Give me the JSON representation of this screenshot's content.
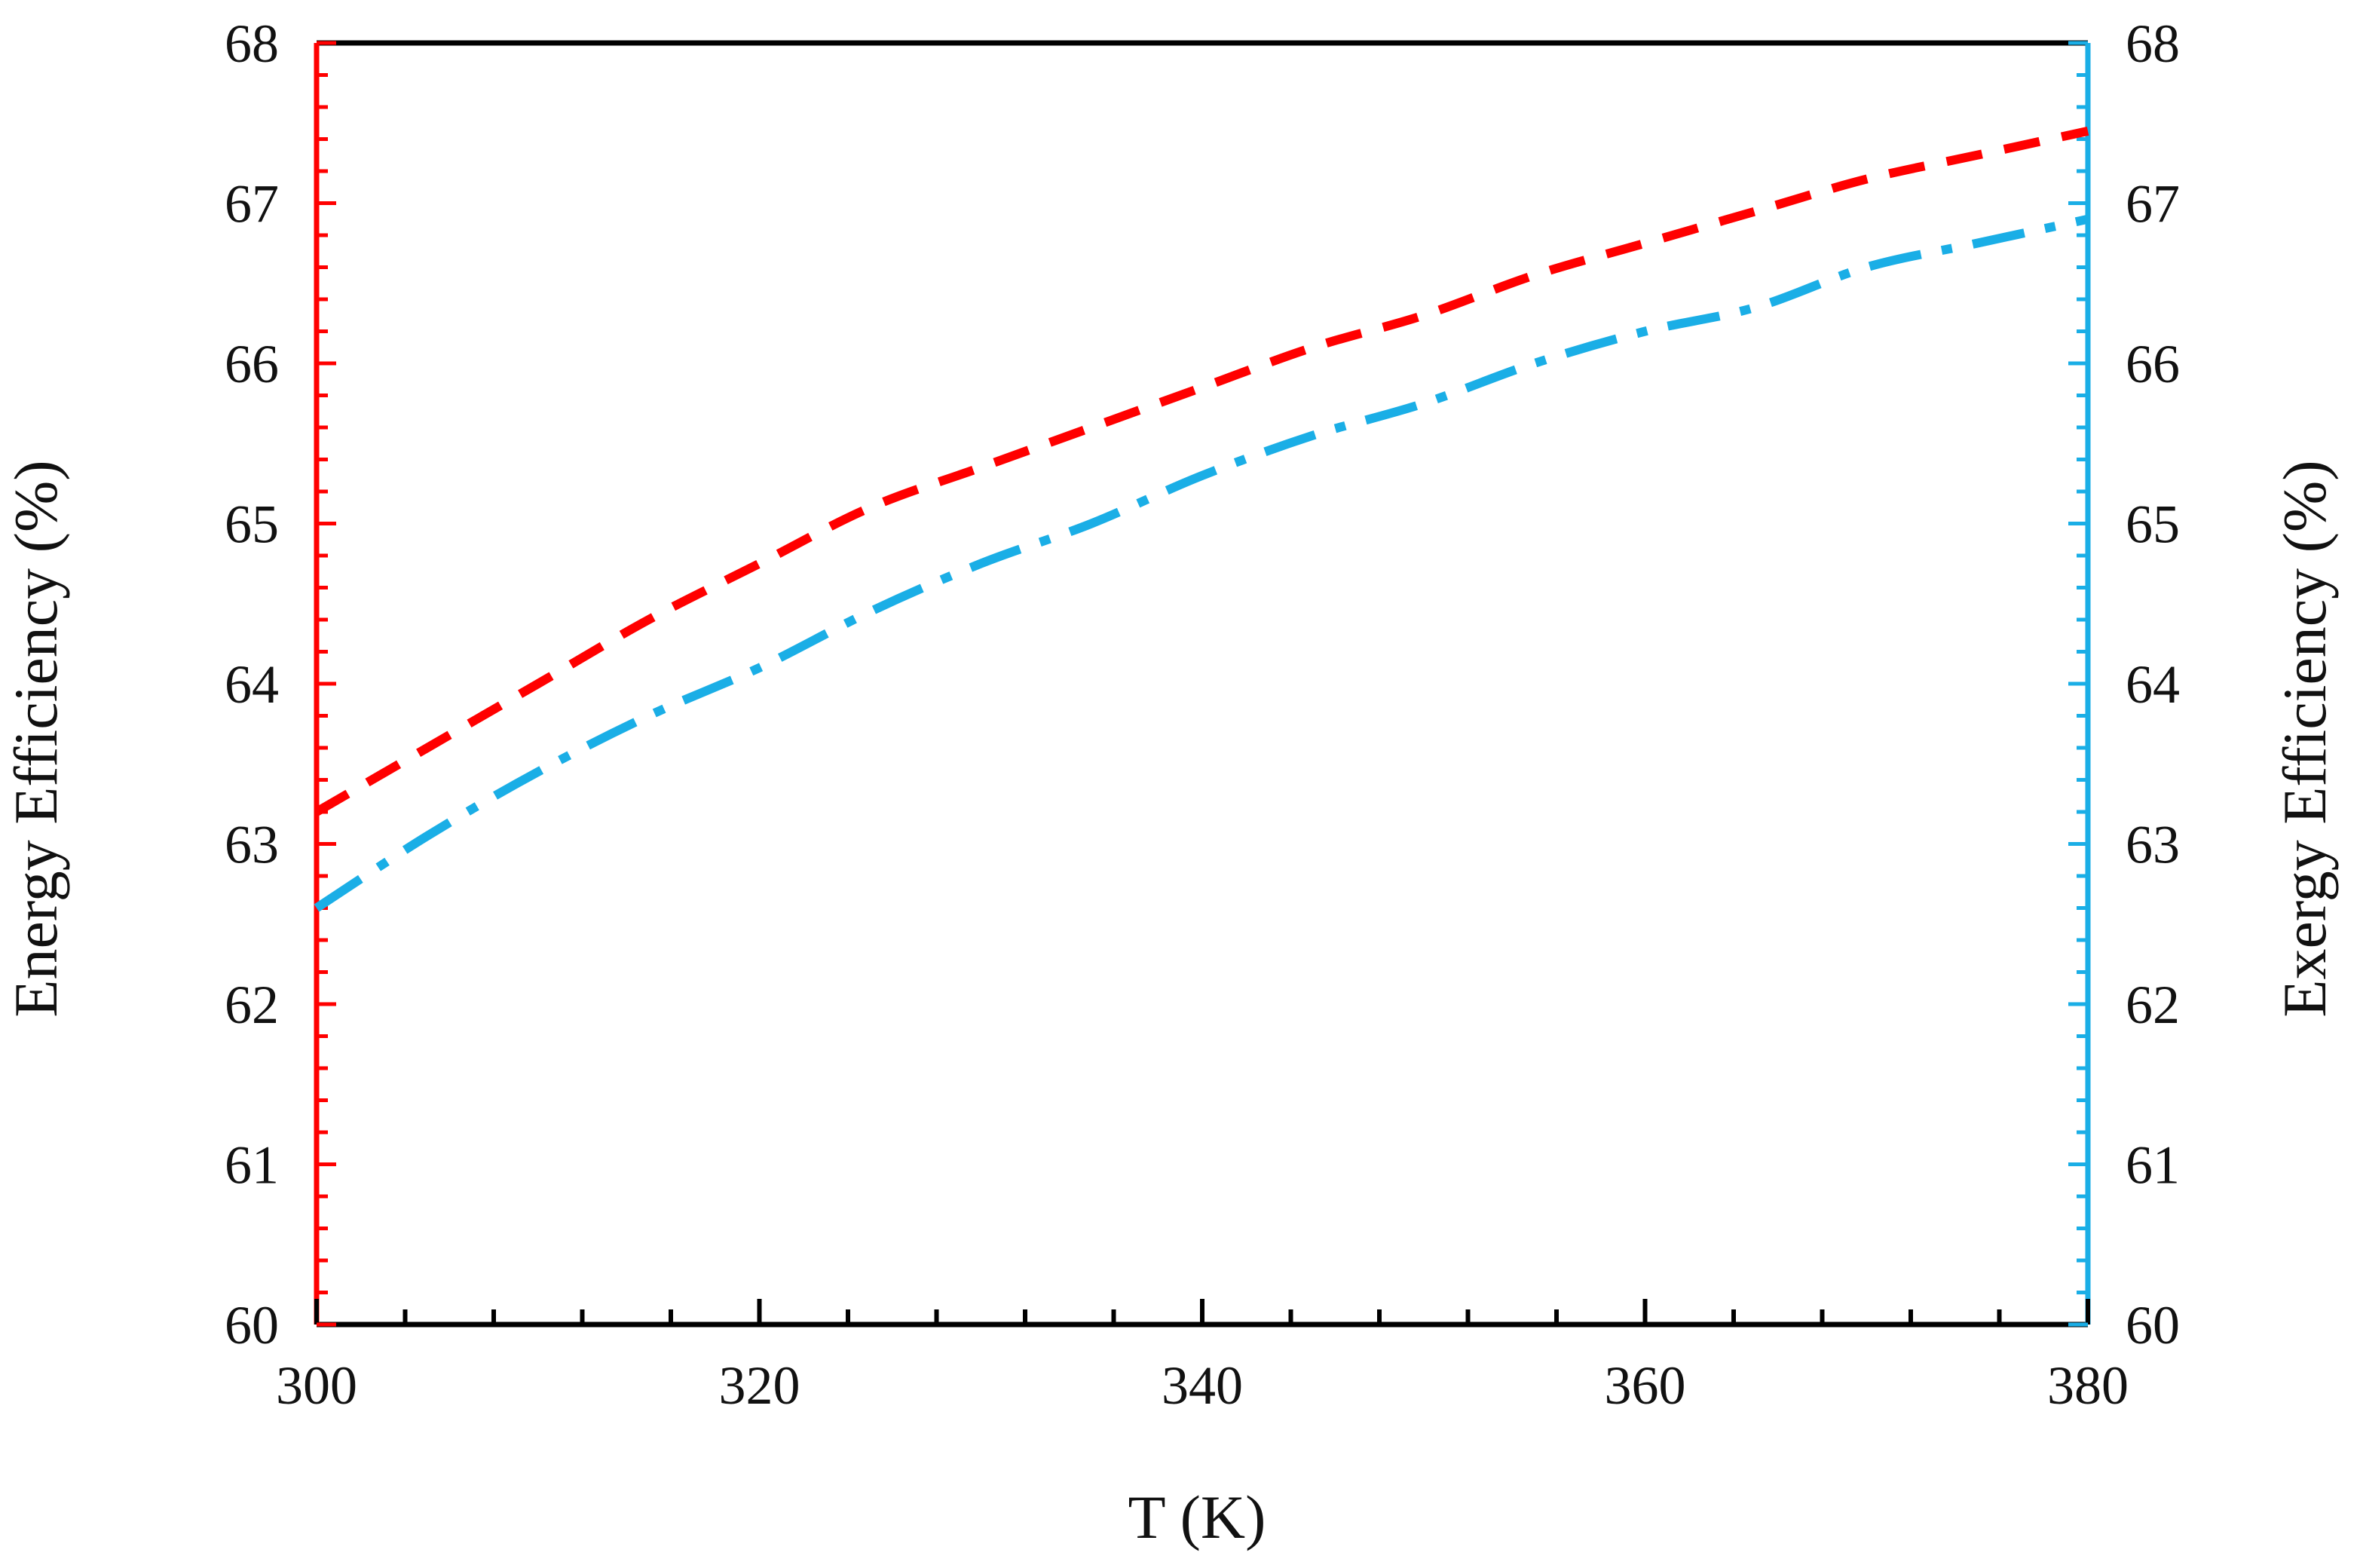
{
  "chart_data": {
    "type": "line",
    "title": "",
    "xlabel": "T (K)",
    "ylabel_left": "Energy Efficiency (%)",
    "ylabel_right": "Exergy Efficiency (%)",
    "xlim": [
      300,
      380
    ],
    "ylim_left": [
      60,
      68
    ],
    "ylim_right": [
      60,
      68
    ],
    "x_ticks": [
      "300",
      "320",
      "340",
      "360",
      "380"
    ],
    "y_ticks_left": [
      "60",
      "61",
      "62",
      "63",
      "64",
      "65",
      "66",
      "67",
      "68"
    ],
    "y_ticks_right": [
      "60",
      "61",
      "62",
      "63",
      "64",
      "65",
      "66",
      "67",
      "68"
    ],
    "grid": false,
    "legend": "none",
    "colors": {
      "left_axis": "#ff0000",
      "right_axis": "#1aaee6",
      "frame": "#000000"
    },
    "series": [
      {
        "axis": "left",
        "color": "#ff0000",
        "dash": "dashed",
        "x": [
          300,
          305,
          310,
          315,
          320,
          325,
          330,
          335,
          340,
          345,
          350,
          355,
          360,
          365,
          370,
          375,
          380
        ],
        "y": [
          63.2,
          63.6,
          64.0,
          64.4,
          64.75,
          65.1,
          65.35,
          65.6,
          65.85,
          66.1,
          66.3,
          66.55,
          66.75,
          66.95,
          67.15,
          67.3,
          67.45
        ]
      },
      {
        "axis": "right",
        "color": "#1aaee6",
        "dash": "dash-dot",
        "x": [
          300,
          305,
          310,
          315,
          320,
          325,
          330,
          335,
          340,
          345,
          350,
          355,
          360,
          365,
          370,
          375,
          380
        ],
        "y": [
          62.6,
          63.05,
          63.45,
          63.8,
          64.1,
          64.45,
          64.75,
          65.0,
          65.3,
          65.55,
          65.75,
          66.0,
          66.2,
          66.35,
          66.6,
          66.75,
          66.9
        ]
      }
    ]
  }
}
